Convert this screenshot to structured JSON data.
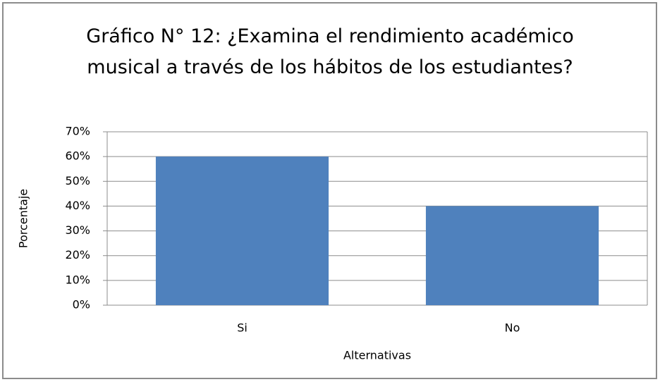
{
  "chart_data": {
    "type": "bar",
    "title": "Gráfico N° 12: ¿Examina el rendimiento académico musical a través de los hábitos de los estudiantes?",
    "x_label": "Alternativas",
    "y_label": "Porcentaje",
    "categories": [
      "Si",
      "No"
    ],
    "values": [
      60,
      40
    ],
    "color": "#4f81bd",
    "ylim": [
      0,
      70
    ],
    "yticks": [
      {
        "value": 0,
        "label": "0%"
      },
      {
        "value": 10,
        "label": "10%"
      },
      {
        "value": 20,
        "label": "20%"
      },
      {
        "value": 30,
        "label": "30%"
      },
      {
        "value": 40,
        "label": "40%"
      },
      {
        "value": 50,
        "label": "50%"
      },
      {
        "value": 60,
        "label": "60%"
      },
      {
        "value": 70,
        "label": "70%"
      }
    ],
    "grid": true
  }
}
